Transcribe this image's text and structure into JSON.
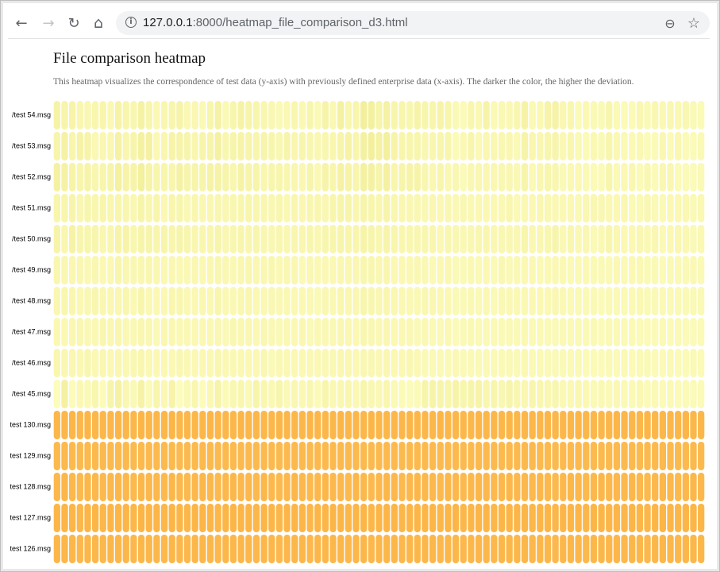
{
  "browser": {
    "url_host": "127.0.0.1",
    "url_rest": ":8000/heatmap_file_comparison_d3.html",
    "back_glyph": "←",
    "forward_glyph": "→",
    "reload_glyph": "↻",
    "home_glyph": "⌂",
    "info_glyph": "i",
    "zoom_glyph": "⊖",
    "star_glyph": "☆",
    "icons": [
      "back-arrow-icon",
      "forward-arrow-icon",
      "reload-icon",
      "home-icon",
      "info-icon",
      "zoom-out-icon",
      "bookmark-star-icon"
    ]
  },
  "page": {
    "title": "File comparison heatmap",
    "description": "This heatmap visualizes the correspondence of test data (y-axis) with previously defined enterprise data (x-axis). The darker the color, the higher the deviation."
  },
  "chart_data": {
    "type": "heatmap",
    "title": "File comparison heatmap",
    "xlabel": "",
    "ylabel": "",
    "y_categories": [
      "/test 54.msg",
      "/test 53.msg",
      "/test 52.msg",
      "/test 51.msg",
      "/test 50.msg",
      "/test 49.msg",
      "/test 48.msg",
      "/test 47.msg",
      "/test 46.msg",
      "/test 45.msg",
      "test 130.msg",
      "test 129.msg",
      "test 128.msg",
      "test 127.msg",
      "test 126.msg"
    ],
    "num_columns": 85,
    "color_scale": {
      "low": "#ffffc4",
      "mid": "#f2ee9a",
      "high": "#fdb243"
    },
    "row_values": [
      [
        0.14,
        0.12,
        0.13,
        0.1,
        0.09,
        0.1,
        0.11,
        0.08,
        0.14,
        0.11,
        0.1,
        0.15,
        0.11,
        0.08,
        0.1,
        0.11,
        0.13,
        0.08,
        0.09,
        0.07,
        0.11,
        0.15,
        0.07,
        0.11,
        0.14,
        0.12,
        0.11,
        0.1,
        0.09,
        0.07,
        0.08,
        0.1,
        0.08,
        0.11,
        0.07,
        0.13,
        0.08,
        0.16,
        0.1,
        0.11,
        0.19,
        0.18,
        0.12,
        0.15,
        0.11,
        0.11,
        0.1,
        0.13,
        0.11,
        0.11,
        0.13,
        0.11,
        0.07,
        0.06,
        0.1,
        0.08,
        0.13,
        0.07,
        0.08,
        0.08,
        0.1,
        0.14,
        0.07,
        0.08,
        0.13,
        0.14,
        0.09,
        0.1,
        0.06,
        0.08,
        0.07,
        0.07,
        0.11,
        0.07,
        0.06,
        0.06,
        0.09,
        0.07,
        0.09,
        0.08,
        0.09,
        0.08,
        0.09,
        0.07,
        0.06
      ],
      [
        0.12,
        0.15,
        0.11,
        0.14,
        0.13,
        0.08,
        0.09,
        0.09,
        0.15,
        0.1,
        0.12,
        0.16,
        0.16,
        0.08,
        0.1,
        0.13,
        0.13,
        0.12,
        0.1,
        0.12,
        0.12,
        0.16,
        0.1,
        0.12,
        0.13,
        0.12,
        0.11,
        0.12,
        0.11,
        0.09,
        0.12,
        0.1,
        0.11,
        0.1,
        0.09,
        0.1,
        0.1,
        0.12,
        0.14,
        0.11,
        0.16,
        0.19,
        0.15,
        0.18,
        0.13,
        0.11,
        0.11,
        0.11,
        0.09,
        0.1,
        0.11,
        0.11,
        0.06,
        0.08,
        0.11,
        0.07,
        0.09,
        0.09,
        0.09,
        0.09,
        0.07,
        0.13,
        0.1,
        0.09,
        0.11,
        0.12,
        0.08,
        0.1,
        0.07,
        0.06,
        0.08,
        0.07,
        0.11,
        0.08,
        0.07,
        0.07,
        0.08,
        0.06,
        0.06,
        0.09,
        0.06,
        0.09,
        0.06,
        0.06,
        0.07
      ],
      [
        0.16,
        0.15,
        0.13,
        0.11,
        0.13,
        0.1,
        0.11,
        0.12,
        0.17,
        0.13,
        0.13,
        0.18,
        0.13,
        0.11,
        0.11,
        0.11,
        0.15,
        0.12,
        0.12,
        0.12,
        0.14,
        0.14,
        0.12,
        0.1,
        0.14,
        0.12,
        0.12,
        0.1,
        0.11,
        0.11,
        0.1,
        0.1,
        0.09,
        0.12,
        0.08,
        0.13,
        0.11,
        0.15,
        0.13,
        0.11,
        0.17,
        0.16,
        0.12,
        0.16,
        0.11,
        0.12,
        0.13,
        0.13,
        0.1,
        0.09,
        0.11,
        0.08,
        0.09,
        0.06,
        0.09,
        0.09,
        0.09,
        0.09,
        0.09,
        0.09,
        0.08,
        0.12,
        0.07,
        0.09,
        0.11,
        0.1,
        0.07,
        0.08,
        0.08,
        0.07,
        0.06,
        0.06,
        0.11,
        0.07,
        0.08,
        0.09,
        0.06,
        0.09,
        0.06,
        0.09,
        0.09,
        0.06,
        0.06,
        0.06,
        0.07
      ],
      [
        0.11,
        0.11,
        0.12,
        0.09,
        0.11,
        0.1,
        0.11,
        0.1,
        0.11,
        0.1,
        0.09,
        0.12,
        0.1,
        0.11,
        0.08,
        0.11,
        0.11,
        0.08,
        0.1,
        0.09,
        0.09,
        0.1,
        0.09,
        0.1,
        0.1,
        0.11,
        0.1,
        0.1,
        0.09,
        0.1,
        0.08,
        0.1,
        0.09,
        0.1,
        0.1,
        0.09,
        0.11,
        0.12,
        0.12,
        0.1,
        0.12,
        0.11,
        0.1,
        0.12,
        0.1,
        0.09,
        0.09,
        0.09,
        0.08,
        0.09,
        0.08,
        0.09,
        0.08,
        0.09,
        0.08,
        0.08,
        0.08,
        0.08,
        0.08,
        0.1,
        0.07,
        0.08,
        0.08,
        0.09,
        0.09,
        0.08,
        0.08,
        0.08,
        0.07,
        0.09,
        0.09,
        0.09,
        0.08,
        0.08,
        0.09,
        0.07,
        0.07,
        0.09,
        0.07,
        0.07,
        0.08,
        0.08,
        0.08,
        0.07,
        0.08
      ],
      [
        0.13,
        0.1,
        0.14,
        0.11,
        0.11,
        0.11,
        0.09,
        0.1,
        0.13,
        0.13,
        0.1,
        0.12,
        0.12,
        0.11,
        0.12,
        0.11,
        0.12,
        0.11,
        0.1,
        0.1,
        0.1,
        0.12,
        0.09,
        0.1,
        0.11,
        0.1,
        0.11,
        0.1,
        0.09,
        0.1,
        0.09,
        0.1,
        0.1,
        0.11,
        0.09,
        0.11,
        0.11,
        0.12,
        0.11,
        0.11,
        0.13,
        0.12,
        0.1,
        0.12,
        0.11,
        0.1,
        0.1,
        0.1,
        0.1,
        0.1,
        0.08,
        0.1,
        0.09,
        0.08,
        0.09,
        0.1,
        0.1,
        0.09,
        0.09,
        0.09,
        0.09,
        0.11,
        0.09,
        0.09,
        0.1,
        0.12,
        0.08,
        0.1,
        0.08,
        0.09,
        0.07,
        0.08,
        0.11,
        0.09,
        0.08,
        0.08,
        0.09,
        0.08,
        0.09,
        0.07,
        0.08,
        0.09,
        0.08,
        0.07,
        0.08
      ],
      [
        0.1,
        0.09,
        0.09,
        0.09,
        0.08,
        0.09,
        0.08,
        0.08,
        0.11,
        0.09,
        0.09,
        0.09,
        0.1,
        0.09,
        0.08,
        0.09,
        0.08,
        0.08,
        0.09,
        0.08,
        0.09,
        0.1,
        0.09,
        0.08,
        0.09,
        0.1,
        0.09,
        0.09,
        0.1,
        0.08,
        0.09,
        0.09,
        0.07,
        0.09,
        0.08,
        0.08,
        0.08,
        0.09,
        0.09,
        0.09,
        0.1,
        0.1,
        0.09,
        0.1,
        0.08,
        0.08,
        0.08,
        0.09,
        0.08,
        0.07,
        0.08,
        0.09,
        0.07,
        0.07,
        0.08,
        0.07,
        0.08,
        0.07,
        0.09,
        0.07,
        0.08,
        0.08,
        0.08,
        0.07,
        0.08,
        0.08,
        0.08,
        0.07,
        0.07,
        0.08,
        0.07,
        0.07,
        0.07,
        0.08,
        0.07,
        0.08,
        0.08,
        0.07,
        0.07,
        0.06,
        0.07,
        0.07,
        0.07,
        0.08,
        0.07
      ],
      [
        0.09,
        0.1,
        0.1,
        0.08,
        0.09,
        0.1,
        0.09,
        0.09,
        0.09,
        0.1,
        0.08,
        0.11,
        0.08,
        0.08,
        0.08,
        0.1,
        0.1,
        0.08,
        0.08,
        0.09,
        0.08,
        0.11,
        0.08,
        0.08,
        0.09,
        0.1,
        0.08,
        0.08,
        0.09,
        0.08,
        0.08,
        0.08,
        0.08,
        0.08,
        0.07,
        0.09,
        0.08,
        0.1,
        0.09,
        0.09,
        0.11,
        0.1,
        0.09,
        0.1,
        0.09,
        0.08,
        0.08,
        0.08,
        0.09,
        0.09,
        0.08,
        0.08,
        0.07,
        0.07,
        0.08,
        0.07,
        0.08,
        0.07,
        0.08,
        0.08,
        0.08,
        0.08,
        0.08,
        0.08,
        0.08,
        0.09,
        0.08,
        0.07,
        0.07,
        0.07,
        0.07,
        0.06,
        0.07,
        0.07,
        0.07,
        0.07,
        0.08,
        0.07,
        0.07,
        0.07,
        0.07,
        0.07,
        0.07,
        0.07,
        0.07
      ],
      [
        0.08,
        0.08,
        0.09,
        0.09,
        0.08,
        0.08,
        0.1,
        0.09,
        0.1,
        0.08,
        0.08,
        0.09,
        0.09,
        0.07,
        0.09,
        0.09,
        0.08,
        0.08,
        0.08,
        0.08,
        0.08,
        0.09,
        0.07,
        0.09,
        0.09,
        0.09,
        0.08,
        0.09,
        0.08,
        0.07,
        0.08,
        0.08,
        0.09,
        0.07,
        0.08,
        0.08,
        0.08,
        0.09,
        0.09,
        0.08,
        0.1,
        0.09,
        0.08,
        0.09,
        0.08,
        0.08,
        0.08,
        0.07,
        0.08,
        0.07,
        0.07,
        0.08,
        0.06,
        0.07,
        0.08,
        0.07,
        0.07,
        0.07,
        0.07,
        0.07,
        0.07,
        0.08,
        0.07,
        0.07,
        0.07,
        0.07,
        0.07,
        0.07,
        0.07,
        0.07,
        0.07,
        0.06,
        0.07,
        0.07,
        0.07,
        0.07,
        0.06,
        0.06,
        0.06,
        0.07,
        0.06,
        0.07,
        0.06,
        0.06,
        0.06
      ],
      [
        0.1,
        0.09,
        0.09,
        0.08,
        0.1,
        0.08,
        0.09,
        0.08,
        0.09,
        0.08,
        0.09,
        0.1,
        0.08,
        0.08,
        0.08,
        0.08,
        0.09,
        0.08,
        0.08,
        0.08,
        0.08,
        0.1,
        0.08,
        0.08,
        0.08,
        0.08,
        0.08,
        0.09,
        0.07,
        0.08,
        0.08,
        0.08,
        0.08,
        0.08,
        0.08,
        0.08,
        0.08,
        0.09,
        0.09,
        0.08,
        0.09,
        0.09,
        0.08,
        0.09,
        0.08,
        0.08,
        0.09,
        0.08,
        0.07,
        0.07,
        0.07,
        0.07,
        0.08,
        0.07,
        0.07,
        0.07,
        0.07,
        0.07,
        0.07,
        0.07,
        0.07,
        0.08,
        0.07,
        0.07,
        0.07,
        0.07,
        0.07,
        0.07,
        0.07,
        0.06,
        0.06,
        0.06,
        0.07,
        0.06,
        0.07,
        0.06,
        0.07,
        0.07,
        0.06,
        0.06,
        0.07,
        0.06,
        0.06,
        0.07,
        0.06
      ],
      [
        0.04,
        0.16,
        0.05,
        0.08,
        0.07,
        0.1,
        0.05,
        0.12,
        0.15,
        0.09,
        0.07,
        0.14,
        0.06,
        0.11,
        0.08,
        0.13,
        0.04,
        0.07,
        0.1,
        0.05,
        0.08,
        0.13,
        0.06,
        0.09,
        0.1,
        0.07,
        0.12,
        0.1,
        0.08,
        0.11,
        0.07,
        0.09,
        0.08,
        0.1,
        0.06,
        0.11,
        0.08,
        0.09,
        0.1,
        0.08,
        0.11,
        0.09,
        0.08,
        0.1,
        0.07,
        0.06,
        0.05,
        0.06,
        0.12,
        0.13,
        0.12,
        0.11,
        0.13,
        0.11,
        0.12,
        0.13,
        0.1,
        0.11,
        0.09,
        0.12,
        0.1,
        0.09,
        0.11,
        0.1,
        0.09,
        0.1,
        0.08,
        0.08,
        0.09,
        0.08,
        0.07,
        0.08,
        0.07,
        0.08,
        0.07,
        0.07,
        0.08,
        0.06,
        0.07,
        0.06,
        0.07,
        0.06,
        0.06,
        0.06,
        0.06
      ],
      [
        0.94,
        0.93,
        0.95,
        0.94,
        0.95,
        0.94,
        0.93,
        0.94,
        0.95,
        0.94,
        0.93,
        0.95,
        0.94,
        0.93,
        0.94,
        0.95,
        0.94,
        0.93,
        0.94,
        0.94,
        0.95,
        0.94,
        0.93,
        0.94,
        0.95,
        0.94,
        0.93,
        0.94,
        0.94,
        0.95,
        0.94,
        0.93,
        0.94,
        0.95,
        0.94,
        0.93,
        0.94,
        0.95,
        0.94,
        0.93,
        0.94,
        0.95,
        0.94,
        0.94,
        0.93,
        0.94,
        0.95,
        0.94,
        0.93,
        0.94,
        0.95,
        0.94,
        0.93,
        0.94,
        0.94,
        0.95,
        0.94,
        0.93,
        0.94,
        0.95,
        0.94,
        0.93,
        0.94,
        0.94,
        0.95,
        0.94,
        0.93,
        0.94,
        0.95,
        0.94,
        0.93,
        0.94,
        0.94,
        0.95,
        0.94,
        0.93,
        0.94,
        0.95,
        0.94,
        0.93,
        0.94,
        0.94,
        0.95,
        0.94,
        0.93
      ],
      [
        0.9,
        0.91,
        0.9,
        0.89,
        0.91,
        0.9,
        0.89,
        0.9,
        0.91,
        0.9,
        0.89,
        0.91,
        0.9,
        0.9,
        0.89,
        0.91,
        0.9,
        0.89,
        0.9,
        0.91,
        0.9,
        0.89,
        0.9,
        0.91,
        0.9,
        0.9,
        0.89,
        0.91,
        0.9,
        0.89,
        0.9,
        0.91,
        0.9,
        0.89,
        0.9,
        0.91,
        0.9,
        0.9,
        0.89,
        0.91,
        0.9,
        0.89,
        0.9,
        0.91,
        0.9,
        0.89,
        0.9,
        0.91,
        0.9,
        0.9,
        0.89,
        0.91,
        0.9,
        0.89,
        0.9,
        0.91,
        0.9,
        0.89,
        0.9,
        0.91,
        0.9,
        0.9,
        0.89,
        0.91,
        0.9,
        0.89,
        0.9,
        0.91,
        0.9,
        0.89,
        0.9,
        0.91,
        0.9,
        0.9,
        0.89,
        0.91,
        0.9,
        0.89,
        0.9,
        0.91,
        0.9,
        0.89,
        0.9,
        0.91,
        0.9
      ],
      [
        0.92,
        0.93,
        0.92,
        0.91,
        0.93,
        0.92,
        0.91,
        0.92,
        0.93,
        0.92,
        0.91,
        0.93,
        0.92,
        0.92,
        0.91,
        0.93,
        0.92,
        0.91,
        0.92,
        0.93,
        0.92,
        0.91,
        0.92,
        0.93,
        0.92,
        0.92,
        0.91,
        0.93,
        0.92,
        0.91,
        0.92,
        0.93,
        0.92,
        0.91,
        0.92,
        0.93,
        0.92,
        0.92,
        0.91,
        0.93,
        0.92,
        0.91,
        0.92,
        0.93,
        0.92,
        0.91,
        0.92,
        0.93,
        0.92,
        0.92,
        0.91,
        0.93,
        0.92,
        0.91,
        0.92,
        0.93,
        0.92,
        0.91,
        0.92,
        0.93,
        0.92,
        0.92,
        0.91,
        0.93,
        0.92,
        0.91,
        0.92,
        0.93,
        0.92,
        0.91,
        0.92,
        0.93,
        0.92,
        0.92,
        0.91,
        0.93,
        0.92,
        0.91,
        0.92,
        0.93,
        0.92,
        0.91,
        0.92,
        0.93,
        0.92
      ],
      [
        0.95,
        0.96,
        0.95,
        0.94,
        0.96,
        0.95,
        0.94,
        0.95,
        0.96,
        0.95,
        0.94,
        0.96,
        0.95,
        0.95,
        0.94,
        0.96,
        0.95,
        0.94,
        0.95,
        0.96,
        0.95,
        0.94,
        0.95,
        0.96,
        0.95,
        0.95,
        0.94,
        0.96,
        0.95,
        0.94,
        0.95,
        0.96,
        0.95,
        0.94,
        0.95,
        0.96,
        0.95,
        0.95,
        0.94,
        0.96,
        0.95,
        0.94,
        0.95,
        0.96,
        0.95,
        0.94,
        0.95,
        0.96,
        0.95,
        0.95,
        0.94,
        0.96,
        0.95,
        0.94,
        0.95,
        0.96,
        0.95,
        0.94,
        0.95,
        0.96,
        0.95,
        0.95,
        0.94,
        0.96,
        0.95,
        0.94,
        0.95,
        0.96,
        0.95,
        0.94,
        0.95,
        0.96,
        0.95,
        0.95,
        0.94,
        0.96,
        0.95,
        0.94,
        0.95,
        0.96,
        0.95,
        0.94,
        0.95,
        0.96,
        0.95
      ],
      [
        0.93,
        0.94,
        0.93,
        0.92,
        0.94,
        0.93,
        0.92,
        0.93,
        0.94,
        0.93,
        0.92,
        0.94,
        0.93,
        0.93,
        0.92,
        0.94,
        0.93,
        0.92,
        0.93,
        0.94,
        0.93,
        0.92,
        0.93,
        0.94,
        0.93,
        0.93,
        0.92,
        0.94,
        0.93,
        0.92,
        0.93,
        0.94,
        0.93,
        0.92,
        0.93,
        0.94,
        0.93,
        0.93,
        0.92,
        0.94,
        0.93,
        0.92,
        0.93,
        0.94,
        0.93,
        0.92,
        0.93,
        0.94,
        0.93,
        0.93,
        0.92,
        0.94,
        0.93,
        0.92,
        0.93,
        0.94,
        0.93,
        0.92,
        0.93,
        0.94,
        0.93,
        0.93,
        0.92,
        0.94,
        0.93,
        0.92,
        0.93,
        0.94,
        0.93,
        0.92,
        0.93,
        0.94,
        0.93,
        0.93,
        0.92,
        0.94,
        0.93,
        0.92,
        0.93,
        0.94,
        0.93,
        0.92,
        0.93,
        0.94,
        0.93
      ]
    ]
  }
}
